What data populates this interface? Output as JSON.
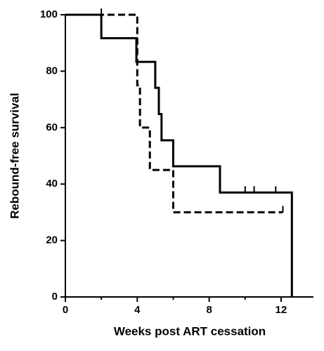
{
  "chart_data": {
    "type": "step",
    "x_label": "Weeks post ART cessation",
    "y_label": "Rebound-free survival",
    "xlim": [
      0,
      13.8
    ],
    "xticks": [
      0,
      4,
      8,
      12
    ],
    "xminorticks": [
      2,
      6,
      10
    ],
    "ylim": [
      0,
      100
    ],
    "yticks": [
      0,
      20,
      40,
      60,
      80,
      100
    ],
    "series": [
      {
        "color": "#000000",
        "dashed": false,
        "x": [
          0,
          2.0,
          3.95,
          5.0,
          5.2,
          5.35,
          6.0,
          8.6,
          12.6
        ],
        "values": [
          100,
          91.7,
          83.3,
          74.1,
          64.8,
          55.5,
          46.3,
          37,
          0
        ],
        "censored": {
          "x": [
            2.0,
            10.0,
            10.5,
            11.7
          ],
          "values": [
            100,
            37,
            37,
            37
          ]
        }
      },
      {
        "color": "#000000",
        "dashed": true,
        "x": [
          0,
          4.0,
          4.15,
          4.7,
          6.0
        ],
        "values": [
          100,
          75,
          60,
          45,
          30
        ],
        "censored": {
          "x": [
            12.1
          ],
          "values": [
            30
          ]
        }
      }
    ]
  }
}
